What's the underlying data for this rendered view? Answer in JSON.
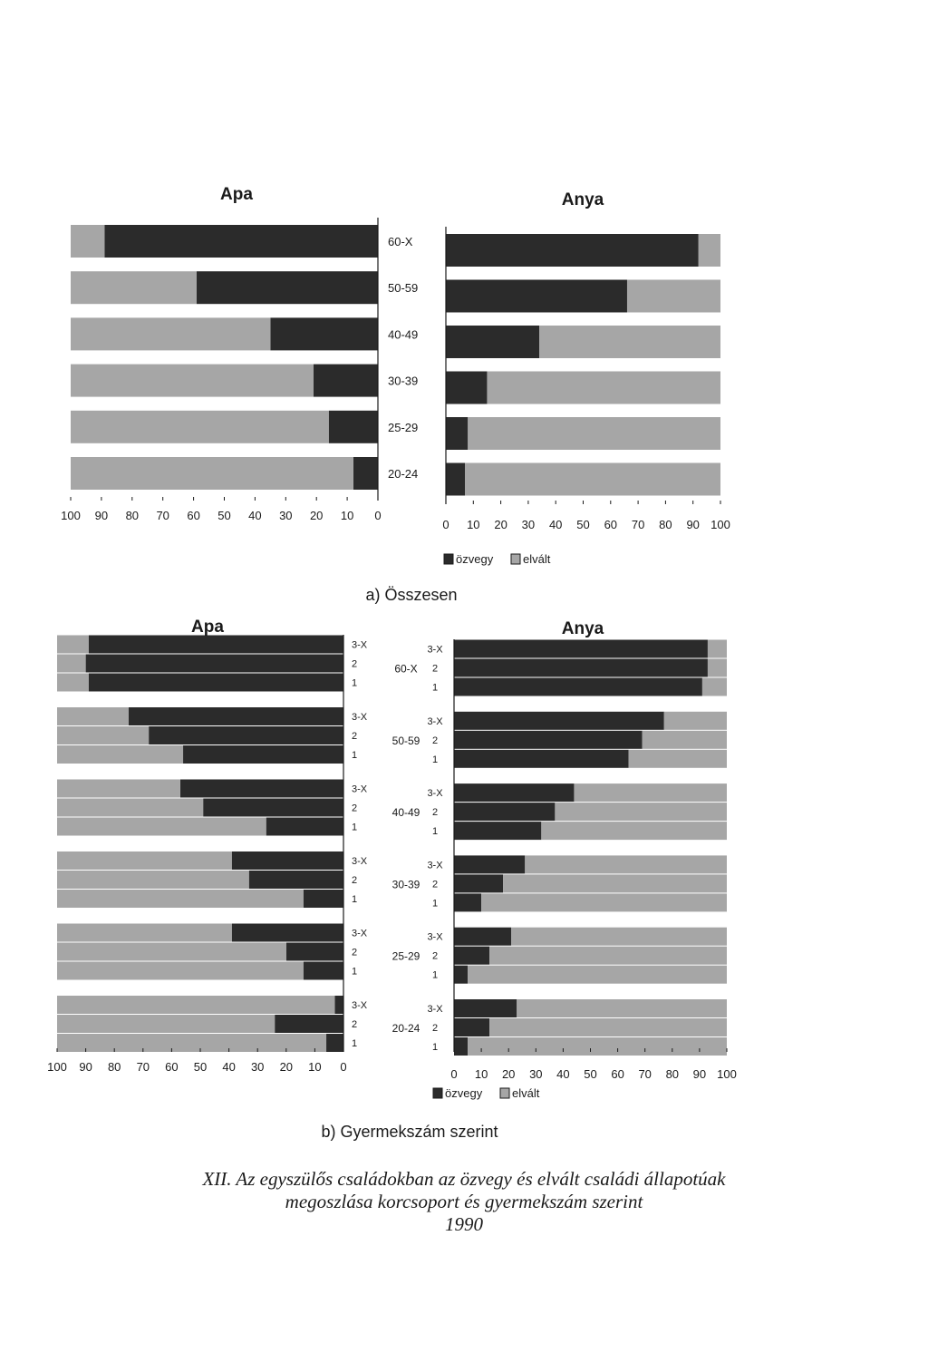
{
  "colors": {
    "ozvegy": "#2b2b2b",
    "elvalt": "#a6a6a6",
    "axis": "#1a1a1a"
  },
  "chart_data": [
    {
      "type": "bar",
      "orientation": "horizontal",
      "stacked": true,
      "title": "Apa",
      "panel": "a",
      "categories": [
        "60-X",
        "50-59",
        "40-49",
        "30-39",
        "25-29",
        "20-24"
      ],
      "series": [
        {
          "name": "özvegy",
          "values": [
            89,
            59,
            35,
            21,
            16,
            8
          ]
        },
        {
          "name": "elvált",
          "values": [
            11,
            41,
            65,
            79,
            84,
            92
          ]
        }
      ],
      "xlim": [
        0,
        100
      ],
      "x_reversed": true,
      "xticks": [
        "100",
        "90",
        "80",
        "70",
        "60",
        "50",
        "40",
        "30",
        "20",
        "10",
        "0"
      ]
    },
    {
      "type": "bar",
      "orientation": "horizontal",
      "stacked": true,
      "title": "Anya",
      "panel": "a",
      "categories": [
        "60-X",
        "50-59",
        "40-49",
        "30-39",
        "25-29",
        "20-24"
      ],
      "series": [
        {
          "name": "özvegy",
          "values": [
            92,
            66,
            34,
            15,
            8,
            7
          ]
        },
        {
          "name": "elvált",
          "values": [
            8,
            34,
            66,
            85,
            92,
            93
          ]
        }
      ],
      "xlim": [
        0,
        100
      ],
      "xticks": [
        "0",
        "10",
        "20",
        "30",
        "40",
        "50",
        "60",
        "70",
        "80",
        "90",
        "100"
      ],
      "legend": [
        "özvegy",
        "elvált"
      ],
      "legend_position": "bottom"
    },
    {
      "type": "bar",
      "orientation": "horizontal",
      "stacked": true,
      "title": "Apa",
      "panel": "b",
      "groups": [
        "60-X",
        "50-59",
        "40-49",
        "30-39",
        "25-29",
        "20-24"
      ],
      "subcategories": [
        "3-X",
        "2",
        "1"
      ],
      "series": [
        {
          "name": "özvegy",
          "values": [
            [
              89,
              90,
              89
            ],
            [
              75,
              68,
              56
            ],
            [
              57,
              49,
              27
            ],
            [
              39,
              33,
              14
            ],
            [
              39,
              20,
              14
            ],
            [
              3,
              24,
              6
            ]
          ]
        },
        {
          "name": "elvált",
          "values": [
            [
              11,
              10,
              11
            ],
            [
              25,
              32,
              44
            ],
            [
              43,
              51,
              73
            ],
            [
              61,
              67,
              86
            ],
            [
              61,
              80,
              86
            ],
            [
              97,
              76,
              94
            ]
          ]
        }
      ],
      "xlim": [
        0,
        100
      ],
      "x_reversed": true,
      "xticks": [
        "100",
        "90",
        "80",
        "70",
        "60",
        "50",
        "40",
        "30",
        "20",
        "10",
        "0"
      ]
    },
    {
      "type": "bar",
      "orientation": "horizontal",
      "stacked": true,
      "title": "Anya",
      "panel": "b",
      "groups": [
        "60-X",
        "50-59",
        "40-49",
        "30-39",
        "25-29",
        "20-24"
      ],
      "subcategories": [
        "3-X",
        "2",
        "1"
      ],
      "series": [
        {
          "name": "özvegy",
          "values": [
            [
              93,
              93,
              91
            ],
            [
              77,
              69,
              64
            ],
            [
              44,
              37,
              32
            ],
            [
              26,
              18,
              10
            ],
            [
              21,
              13,
              5
            ],
            [
              23,
              13,
              5
            ]
          ]
        },
        {
          "name": "elvált",
          "values": [
            [
              7,
              7,
              9
            ],
            [
              23,
              31,
              36
            ],
            [
              56,
              63,
              68
            ],
            [
              74,
              82,
              90
            ],
            [
              79,
              87,
              95
            ],
            [
              77,
              87,
              95
            ]
          ]
        }
      ],
      "xlim": [
        0,
        100
      ],
      "xticks": [
        "0",
        "10",
        "20",
        "30",
        "40",
        "50",
        "60",
        "70",
        "80",
        "90",
        "100"
      ],
      "legend": [
        "özvegy",
        "elvált"
      ],
      "legend_position": "bottom"
    }
  ],
  "labels": {
    "section_a": "a) Összesen",
    "section_b": "b) Gyermekszám szerint"
  },
  "caption": {
    "line1": "XII. Az egyszülős családokban az özvegy és elvált családi állapotúak",
    "line2": "megoszlása korcsoport és gyermekszám szerint",
    "line3": "1990"
  }
}
